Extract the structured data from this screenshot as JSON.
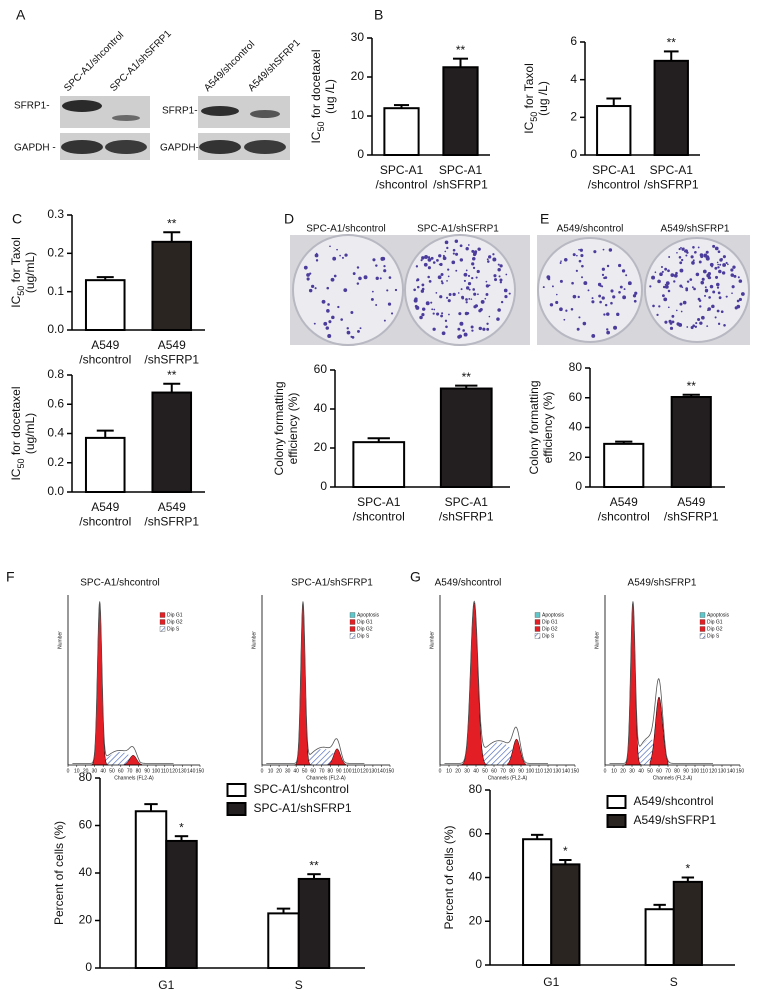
{
  "figure": {
    "panel_letters": [
      "A",
      "B",
      "C",
      "D",
      "E",
      "F",
      "G"
    ],
    "blot": {
      "lanes": [
        "SPC-A1/shcontrol",
        "SPC-A1/shSFRP1",
        "A549/shcontrol",
        "A549/shSFRP1"
      ],
      "row_labels_left": [
        "SFRP1-",
        "GAPDH -"
      ],
      "row_labels_right": [
        "SFRP1-",
        "GAPDH-"
      ]
    },
    "colony_labels": [
      "SPC-A1/shcontrol",
      "SPC-A1/shSFRP1",
      "A549/shcontrol",
      "A549/shSFRP1"
    ],
    "flow": {
      "plots": [
        {
          "title": "SPC-A1/shcontrol",
          "legend": [
            "Dip G1",
            "Dip G2",
            "Dip S"
          ]
        },
        {
          "title": "SPC-A1/shSFRP1",
          "legend": [
            "Apoptosis",
            "Dip G1",
            "Dip G2",
            "Dip S"
          ]
        },
        {
          "title": "A549/shcontrol",
          "legend": [
            "Apoptosis",
            "Dip G1",
            "Dip G2",
            "Dip S"
          ]
        },
        {
          "title": "A549/shSFRP1",
          "legend": [
            "Apoptosis",
            "Dip G1",
            "Dip G2",
            "Dip S"
          ]
        }
      ],
      "xlabel": "Channels (FL2-A)",
      "ylabel": "Number",
      "xticks": [
        0,
        10,
        20,
        30,
        40,
        50,
        60,
        70,
        80,
        90,
        100,
        110,
        120,
        130,
        140,
        150
      ]
    }
  },
  "chart_data": [
    {
      "type": "bar",
      "ylabel": "IC50 for docetaxel\n(ug /L)",
      "categories": [
        "SPC-A1\n/shcontrol",
        "SPC-A1\n/shSFRP1"
      ],
      "values": [
        12,
        22.5
      ],
      "errors": [
        0.8,
        2.2
      ],
      "colors": [
        "#ffffff",
        "#231f20"
      ],
      "annotations": [
        null,
        "**"
      ],
      "ylim": [
        0,
        30
      ],
      "yticks": [
        0,
        10,
        20,
        30
      ]
    },
    {
      "type": "bar",
      "ylabel": "IC50 for Taxol\n(ug /L)",
      "categories": [
        "SPC-A1\n/shcontrol",
        "SPC-A1\n/shSFRP1"
      ],
      "values": [
        2.6,
        5.0
      ],
      "errors": [
        0.4,
        0.5
      ],
      "colors": [
        "#ffffff",
        "#231f20"
      ],
      "annotations": [
        null,
        "**"
      ],
      "ylim": [
        0,
        6
      ],
      "yticks": [
        0,
        2,
        4,
        6
      ]
    },
    {
      "type": "bar",
      "ylabel": "IC50 for Taxol\n(ug/mL)",
      "categories": [
        "A549\n/shcontrol",
        "A549\n/shSFRP1"
      ],
      "values": [
        0.13,
        0.23
      ],
      "errors": [
        0.008,
        0.025
      ],
      "colors": [
        "#ffffff",
        "#2b2522"
      ],
      "annotations": [
        null,
        "**"
      ],
      "ylim": [
        0,
        0.3
      ],
      "yticks": [
        {
          "value": 0,
          "label": "0.0"
        },
        0.1,
        0.2,
        0.3
      ]
    },
    {
      "type": "bar",
      "ylabel": "IC50 for docetaxel\n(ug/mL)",
      "categories": [
        "A549\n/shcontrol",
        "A549\n/shSFRP1"
      ],
      "values": [
        0.37,
        0.68
      ],
      "errors": [
        0.05,
        0.06
      ],
      "colors": [
        "#ffffff",
        "#231f20"
      ],
      "annotations": [
        null,
        "**"
      ],
      "ylim": [
        0,
        0.8
      ],
      "yticks": [
        {
          "value": 0,
          "label": "0.0"
        },
        0.2,
        0.4,
        0.6,
        0.8
      ]
    },
    {
      "type": "bar",
      "ylabel": "Colony formatting\nefficiency (%)",
      "categories": [
        "SPC-A1\n/shcontrol",
        "SPC-A1\n/shSFRP1"
      ],
      "values": [
        23,
        50.5
      ],
      "errors": [
        2,
        1.5
      ],
      "colors": [
        "#ffffff",
        "#231f20"
      ],
      "annotations": [
        null,
        "**"
      ],
      "ylim": [
        0,
        60
      ],
      "yticks": [
        0,
        20,
        40,
        60
      ]
    },
    {
      "type": "bar",
      "ylabel": "Colony formatting\nefficiency (%)",
      "categories": [
        "A549\n/shcontrol",
        "A549\n/shSFRP1"
      ],
      "values": [
        29,
        60.5
      ],
      "errors": [
        1.5,
        1.5
      ],
      "colors": [
        "#ffffff",
        "#231f20"
      ],
      "annotations": [
        null,
        "**"
      ],
      "ylim": [
        0,
        80
      ],
      "yticks": [
        0,
        20,
        40,
        60,
        80
      ]
    },
    {
      "type": "grouped_bar",
      "ylabel": "Percent of cells (%)",
      "categories": [
        "G1",
        "S"
      ],
      "legend": "upper center",
      "series": [
        {
          "name": "SPC-A1/shcontrol",
          "color": "#ffffff",
          "values": [
            66,
            23
          ],
          "errors": [
            3,
            2
          ]
        },
        {
          "name": "SPC-A1/shSFRP1",
          "color": "#231f20",
          "values": [
            53.5,
            37.5
          ],
          "errors": [
            2,
            2
          ],
          "annotations": [
            "*",
            "**"
          ]
        }
      ],
      "ylim": [
        0,
        80
      ],
      "yticks": [
        0,
        20,
        40,
        60,
        80
      ]
    },
    {
      "type": "grouped_bar",
      "ylabel": "Percent of cells (%)",
      "categories": [
        "G1",
        "S"
      ],
      "legend": "upper center",
      "series": [
        {
          "name": "A549/shcontrol",
          "color": "#ffffff",
          "values": [
            57.5,
            25.5
          ],
          "errors": [
            2,
            2
          ]
        },
        {
          "name": "A549/shSFRP1",
          "color": "#2b2522",
          "values": [
            46,
            38
          ],
          "errors": [
            2,
            2
          ],
          "annotations": [
            "*",
            "*"
          ]
        }
      ],
      "ylim": [
        0,
        80
      ],
      "yticks": [
        0,
        20,
        40,
        60,
        80
      ]
    }
  ]
}
